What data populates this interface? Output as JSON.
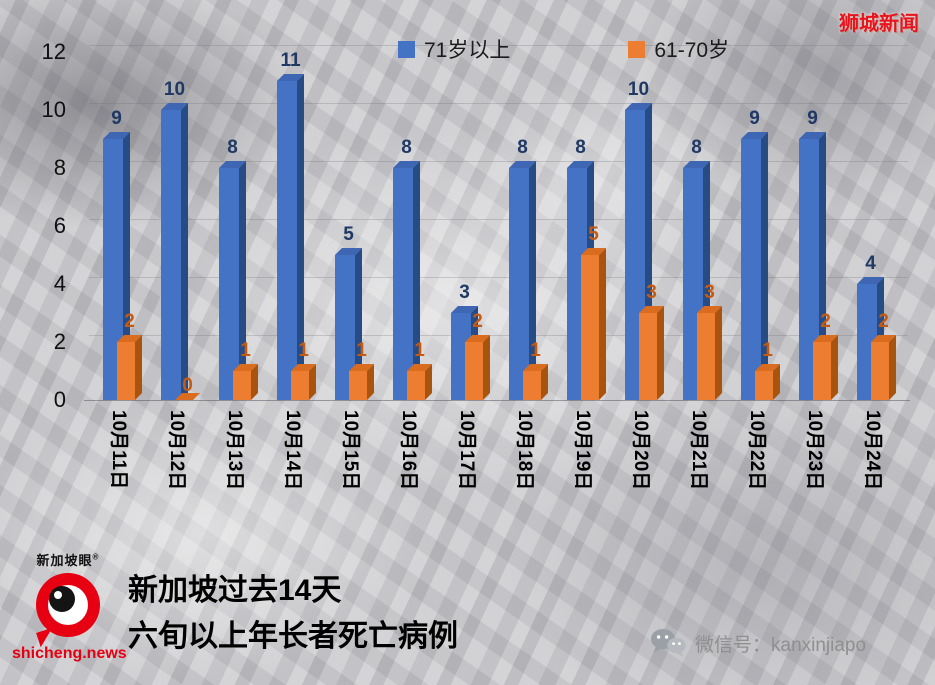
{
  "branding": {
    "watermark": "狮城新闻",
    "logo_name": "新加坡眼",
    "logo_reg": "®",
    "website": "shicheng.news",
    "wechat": "微信号：kanxinjiapo"
  },
  "title": {
    "line1": "新加坡过去14天",
    "line2": "六旬以上年长者死亡病例"
  },
  "chart_data": {
    "type": "bar",
    "style": "3d-column",
    "title": "新加坡过去14天六旬以上年长者死亡病例",
    "categories": [
      "10月11日",
      "10月12日",
      "10月13日",
      "10月14日",
      "10月15日",
      "10月16日",
      "10月17日",
      "10月18日",
      "10月19日",
      "10月20日",
      "10月21日",
      "10月22日",
      "10月23日",
      "10月24日"
    ],
    "series": [
      {
        "name": "71岁以上",
        "color": "#4472C4",
        "values": [
          9,
          10,
          8,
          11,
          5,
          8,
          3,
          8,
          8,
          10,
          8,
          9,
          9,
          4
        ]
      },
      {
        "name": "61-70岁",
        "color": "#ED7D31",
        "values": [
          2,
          0,
          1,
          1,
          1,
          1,
          2,
          1,
          5,
          3,
          3,
          1,
          2,
          2
        ]
      }
    ],
    "xlabel": "",
    "ylabel": "",
    "ylim": [
      0,
      12
    ],
    "yticks": [
      0,
      2,
      4,
      6,
      8,
      10,
      12
    ],
    "legend_position": "top",
    "grid": false,
    "data_labels": true
  },
  "colors": {
    "s1": {
      "front": "#4472C4",
      "top": "#3E66B2",
      "side": "#274B85",
      "label": "#1F3864"
    },
    "s2": {
      "front": "#ED7D31",
      "top": "#D96C1E",
      "side": "#A8540F",
      "label": "#C55A11"
    },
    "watermark_red": "#E8131D",
    "brand_red": "#E60012",
    "wechat_gray": "#8F8F8F"
  }
}
